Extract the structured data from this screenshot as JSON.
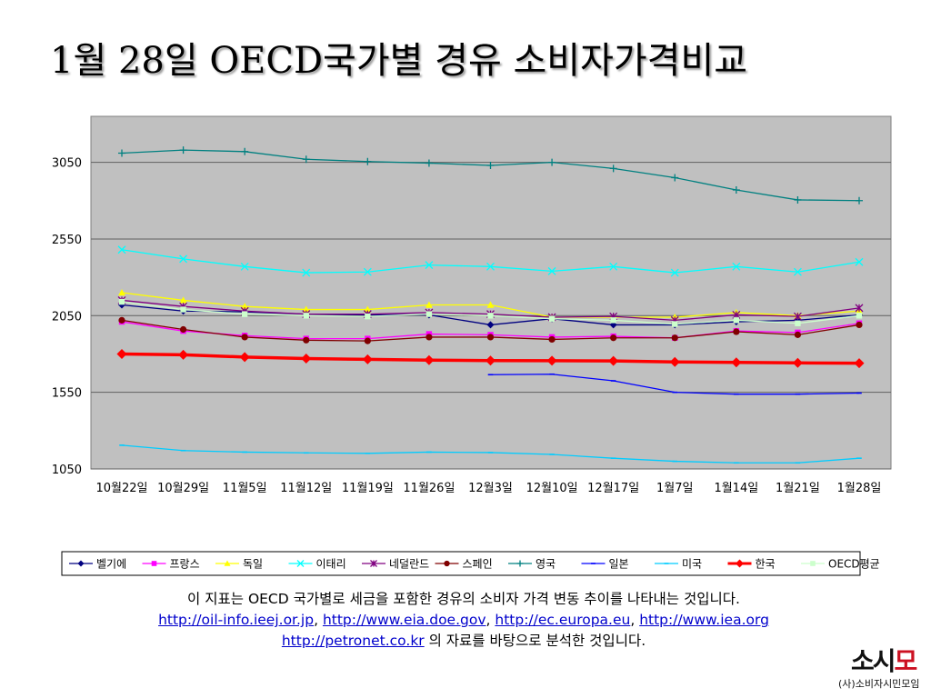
{
  "title": "1월 28일 OECD국가별 경유 소비자가격비교",
  "chart_data": {
    "type": "line",
    "categories": [
      "10월22일",
      "10월29일",
      "11월5일",
      "11월12일",
      "11월19일",
      "11월26일",
      "12월3일",
      "12월10일",
      "12월17일",
      "1월7일",
      "1월14일",
      "1월21일",
      "1월28일"
    ],
    "y_ticks": [
      "3050",
      "2550",
      "2050",
      "1550",
      "1050"
    ],
    "ylim": [
      1050,
      3350
    ],
    "grid": "horizontal",
    "legend_position": "bottom",
    "plot_background": "#c0c0c0",
    "series": [
      {
        "name": "벨기에",
        "color": "#000080",
        "marker": "diamond",
        "values": [
          2120,
          2080,
          2075,
          2060,
          2055,
          2055,
          1990,
          2030,
          1990,
          1990,
          2010,
          2020,
          2055
        ]
      },
      {
        "name": "프랑스",
        "color": "#ff00ff",
        "marker": "square",
        "values": [
          2010,
          1950,
          1920,
          1900,
          1900,
          1930,
          1925,
          1910,
          1915,
          1905,
          1950,
          1940,
          2000
        ]
      },
      {
        "name": "독일",
        "color": "#ffff00",
        "marker": "triangle",
        "values": [
          2200,
          2150,
          2110,
          2090,
          2090,
          2120,
          2120,
          2040,
          2040,
          2040,
          2070,
          2050,
          2080
        ]
      },
      {
        "name": "이태리",
        "color": "#00ffff",
        "marker": "x",
        "values": [
          2480,
          2420,
          2370,
          2330,
          2335,
          2380,
          2370,
          2340,
          2370,
          2330,
          2370,
          2335,
          2400
        ]
      },
      {
        "name": "네덜란드",
        "color": "#800080",
        "marker": "star",
        "values": [
          2150,
          2110,
          2080,
          2060,
          2060,
          2070,
          2060,
          2040,
          2045,
          2020,
          2055,
          2045,
          2100
        ]
      },
      {
        "name": "스페인",
        "color": "#800000",
        "marker": "circle",
        "values": [
          2020,
          1960,
          1910,
          1890,
          1885,
          1910,
          1910,
          1895,
          1905,
          1905,
          1945,
          1925,
          1990
        ]
      },
      {
        "name": "영국",
        "color": "#008080",
        "marker": "plus",
        "values": [
          3110,
          3130,
          3120,
          3070,
          3055,
          3045,
          3030,
          3050,
          3010,
          2950,
          2870,
          2805,
          2800
        ]
      },
      {
        "name": "일본",
        "color": "#0000ff",
        "marker": "dash",
        "values": [
          null,
          null,
          null,
          null,
          null,
          null,
          1665,
          1668,
          1625,
          1550,
          1538,
          1538,
          1545
        ]
      },
      {
        "name": "미국",
        "color": "#00ccff",
        "marker": "dash",
        "values": [
          1205,
          1170,
          1160,
          1155,
          1152,
          1160,
          1157,
          1145,
          1120,
          1100,
          1090,
          1090,
          1120
        ]
      },
      {
        "name": "한국",
        "color": "#ff0000",
        "marker": "diamond",
        "values": [
          1800,
          1795,
          1780,
          1770,
          1765,
          1760,
          1757,
          1756,
          1755,
          1748,
          1745,
          1742,
          1740
        ]
      },
      {
        "name": "OECD평균",
        "color": "#ccffcc",
        "marker": "square",
        "values": [
          2140,
          2090,
          2060,
          2050,
          2045,
          2060,
          2050,
          2030,
          2020,
          1995,
          2020,
          2000,
          2050
        ]
      }
    ]
  },
  "footnote": {
    "line1": "이 지표는 OECD 국가별로 세금을 포함한 경유의 소비자 가격 변동 추이를 나타내는 것입니다.",
    "links": [
      "http://oil-info.ieej.or.jp",
      "http://www.eia.doe.gov",
      "http://ec.europa.eu",
      "http://www.iea.org",
      "http://petronet.co.kr"
    ],
    "sep": ", ",
    "tail": " 의 자료를 바탕으로 분석한 것입니다."
  },
  "logo": {
    "mark_a": "소시",
    "mark_b": "모",
    "sub": "(사)소비자시민모임"
  }
}
